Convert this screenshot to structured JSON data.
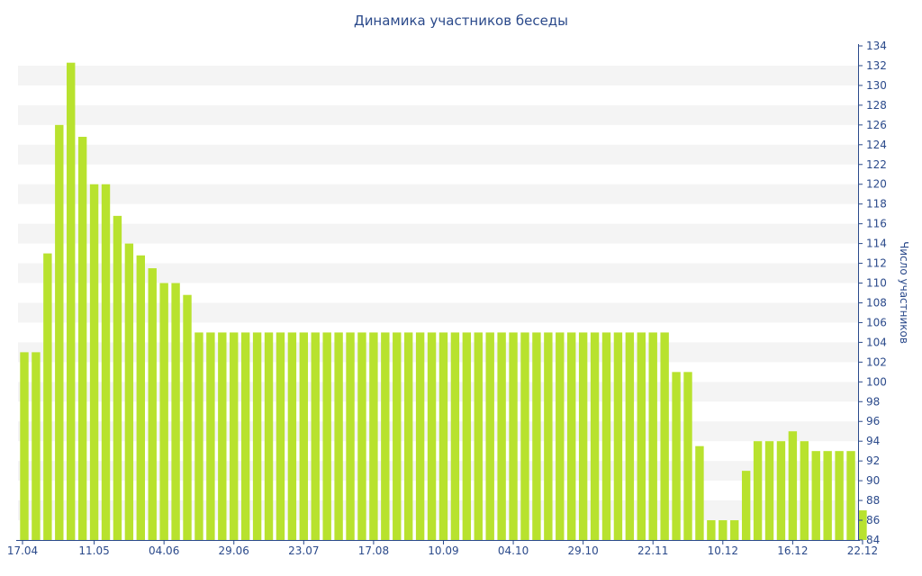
{
  "colors": {
    "bar": "#b8e22e",
    "band": "#f4f4f4",
    "text": "#2b4a8b",
    "axis": "#2b4a8b"
  },
  "chart_data": {
    "type": "bar",
    "title": "Динамика участников беседы",
    "xlabel": "",
    "ylabel": "Число участников",
    "ylim": [
      84,
      134
    ],
    "y_ticks": [
      84,
      86,
      88,
      90,
      92,
      94,
      96,
      98,
      100,
      102,
      104,
      106,
      108,
      110,
      112,
      114,
      116,
      118,
      120,
      122,
      124,
      126,
      128,
      130,
      132,
      134
    ],
    "y_axis_position": "right",
    "x_tick_labels": [
      {
        "index": 0,
        "label": "17.04"
      },
      {
        "index": 6,
        "label": "11.05"
      },
      {
        "index": 12,
        "label": "04.06"
      },
      {
        "index": 18,
        "label": "29.06"
      },
      {
        "index": 24,
        "label": "23.07"
      },
      {
        "index": 30,
        "label": "17.08"
      },
      {
        "index": 36,
        "label": "10.09"
      },
      {
        "index": 42,
        "label": "04.10"
      },
      {
        "index": 48,
        "label": "29.10"
      },
      {
        "index": 54,
        "label": "22.11"
      },
      {
        "index": 60,
        "label": "10.12"
      },
      {
        "index": 66,
        "label": "16.12"
      },
      {
        "index": 72,
        "label": "22.12"
      }
    ],
    "values": [
      103,
      103,
      113,
      126,
      132.3,
      124.8,
      120,
      120,
      116.8,
      114,
      112.8,
      111.5,
      110,
      110,
      108.8,
      105,
      105,
      105,
      105,
      105,
      105,
      105,
      105,
      105,
      105,
      105,
      105,
      105,
      105,
      105,
      105,
      105,
      105,
      105,
      105,
      105,
      105,
      105,
      105,
      105,
      105,
      105,
      105,
      105,
      105,
      105,
      105,
      105,
      105,
      105,
      105,
      105,
      105,
      105,
      105,
      105,
      101,
      101,
      93.5,
      86,
      86,
      86,
      91,
      94,
      94,
      94,
      95,
      94,
      93,
      93,
      93,
      93,
      87
    ],
    "grid": "alternating horizontal bands",
    "legend": "none"
  }
}
